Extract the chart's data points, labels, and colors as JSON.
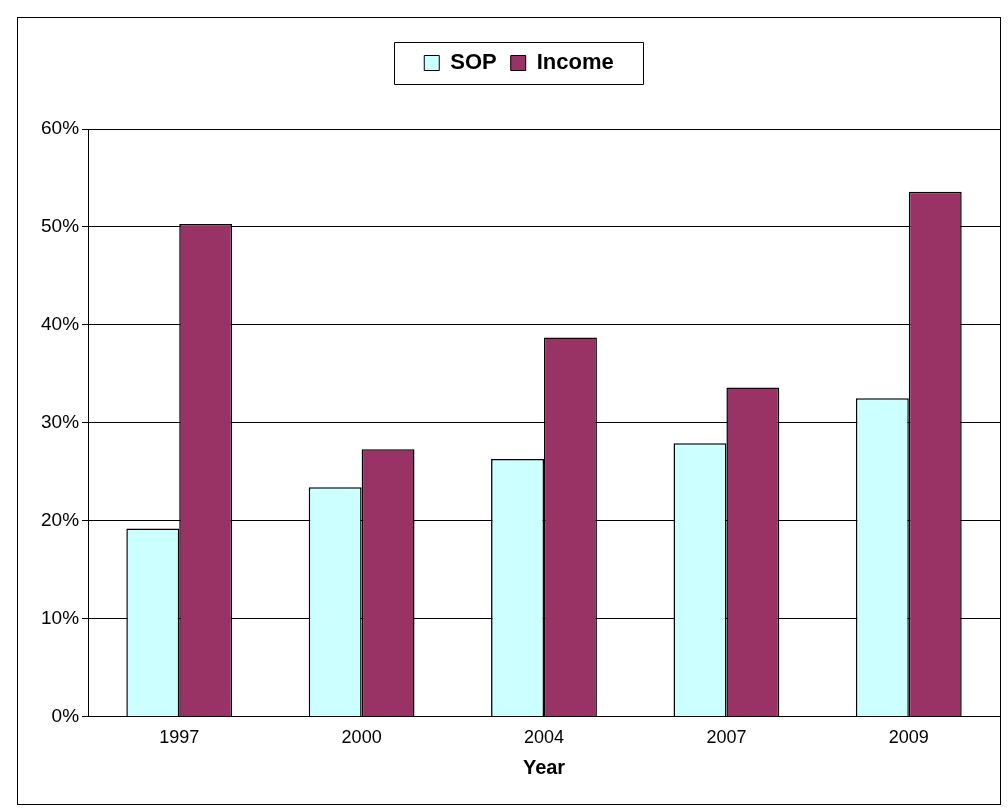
{
  "chart_data": {
    "type": "bar",
    "xlabel": "Year",
    "categories": [
      "1997",
      "2000",
      "2004",
      "2007",
      "2009"
    ],
    "series": [
      {
        "name": "SOP",
        "color": "#ccffff",
        "values": [
          19.2,
          23.4,
          26.3,
          27.9,
          32.5
        ]
      },
      {
        "name": "Income",
        "color": "#993366",
        "values": [
          50.3,
          27.3,
          38.7,
          33.6,
          53.6
        ]
      }
    ],
    "ylim": [
      0,
      60
    ],
    "yticks": [
      {
        "value": 0,
        "label": "0%"
      },
      {
        "value": 10,
        "label": "10%"
      },
      {
        "value": 20,
        "label": "20%"
      },
      {
        "value": 30,
        "label": "30%"
      },
      {
        "value": 40,
        "label": "40%"
      },
      {
        "value": 50,
        "label": "50%"
      },
      {
        "value": 60,
        "label": "60%"
      }
    ],
    "grid": "y",
    "legend": "top"
  }
}
